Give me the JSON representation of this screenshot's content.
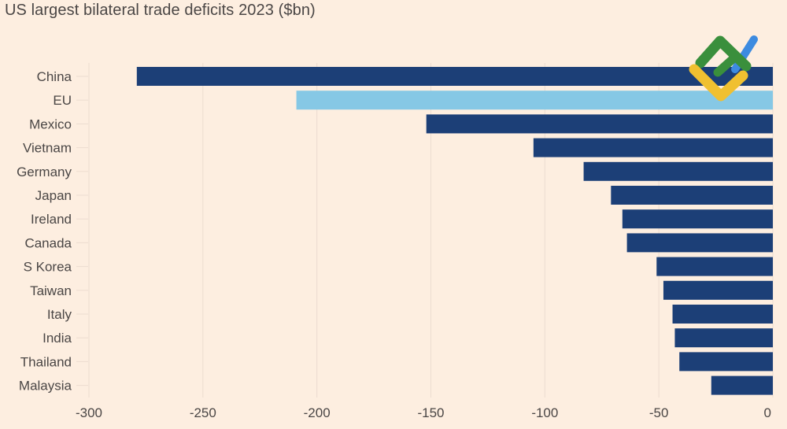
{
  "chart_data": {
    "type": "bar",
    "orientation": "horizontal",
    "title": "US largest bilateral trade deficits 2023 ($bn)",
    "xlabel": "",
    "ylabel": "",
    "categories": [
      "China",
      "EU",
      "Mexico",
      "Vietnam",
      "Germany",
      "Japan",
      "Ireland",
      "Canada",
      "S Korea",
      "Taiwan",
      "Italy",
      "India",
      "Thailand",
      "Malaysia"
    ],
    "values": [
      -279,
      -209,
      -152,
      -105,
      -83,
      -71,
      -66,
      -64,
      -51,
      -48,
      -44,
      -43,
      -41,
      -27
    ],
    "highlight": [
      "EU"
    ],
    "xlim": [
      -300,
      0
    ],
    "xticks": [
      -300,
      -250,
      -200,
      -150,
      -100,
      -50,
      0
    ],
    "xtick_labels": [
      "-300",
      "-250",
      "-200",
      "-150",
      "-100",
      "-50",
      "0"
    ],
    "grid": true,
    "legend": "none",
    "colors": {
      "default": "#1c3f77",
      "highlight": "#86c8e5",
      "grid": "#ecdcd0",
      "background": "#fdeee0"
    }
  },
  "watermark": {
    "name": "logo-watermark",
    "colors": [
      "#3a8f3c",
      "#3d8be0",
      "#f0c030"
    ]
  }
}
